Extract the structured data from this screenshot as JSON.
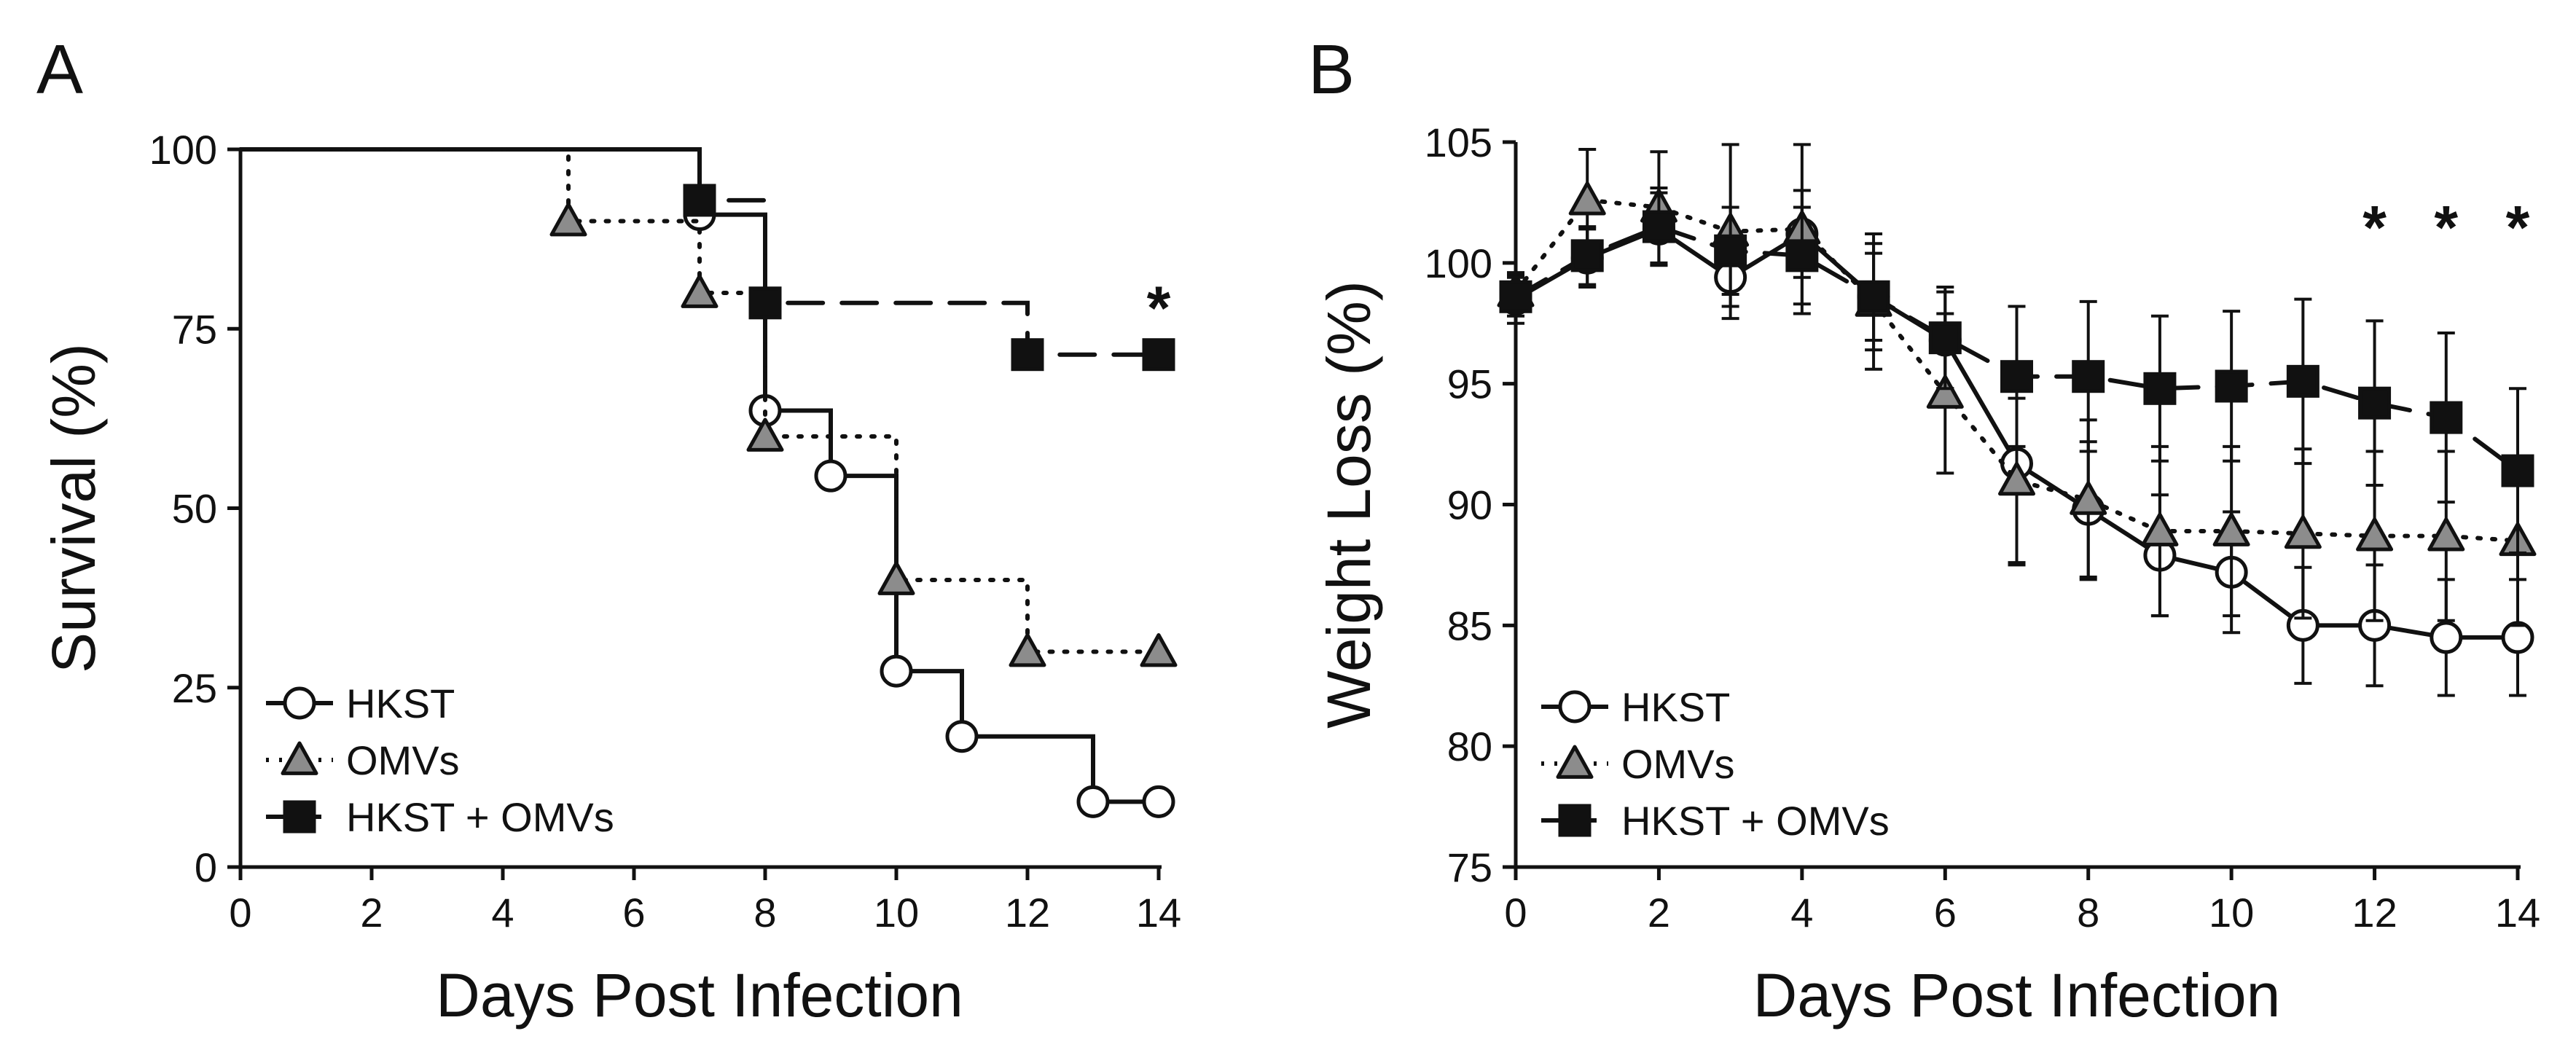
{
  "figure": {
    "labels": [
      "A",
      "B"
    ]
  },
  "styles": {
    "HKST": {
      "marker": "circle",
      "fill": "#ffffff",
      "dash": ""
    },
    "OMVs": {
      "marker": "triangle",
      "fill": "#8c8c8c",
      "dash": "4,16"
    },
    "HKST + OMVs": {
      "marker": "square",
      "fill": "#111111",
      "dash": "48,26"
    }
  },
  "chart_data": [
    {
      "panel": "A",
      "type": "line",
      "subtype": "kaplan-meier",
      "xlabel": "Days Post Infection",
      "ylabel": "Survival (%)",
      "xlim": [
        0,
        14
      ],
      "ylim": [
        0,
        100
      ],
      "xticks": [
        0,
        2,
        4,
        6,
        8,
        10,
        12,
        14
      ],
      "yticks": [
        0,
        25,
        50,
        75,
        100
      ],
      "legend_position": "bottom-left",
      "series": [
        {
          "name": "HKST",
          "steps": [
            [
              0,
              100
            ],
            [
              7,
              90.9
            ],
            [
              8,
              63.6
            ],
            [
              9,
              54.5
            ],
            [
              10,
              27.3
            ],
            [
              11,
              18.2
            ],
            [
              13,
              9.1
            ],
            [
              14,
              9.1
            ]
          ],
          "markers": [
            [
              7,
              90.9
            ],
            [
              8,
              63.6
            ],
            [
              9,
              54.5
            ],
            [
              10,
              27.3
            ],
            [
              11,
              18.2
            ],
            [
              13,
              9.1
            ],
            [
              14,
              9.1
            ]
          ]
        },
        {
          "name": "OMVs",
          "steps": [
            [
              0,
              100
            ],
            [
              5,
              90
            ],
            [
              7,
              80
            ],
            [
              8,
              60
            ],
            [
              10,
              40
            ],
            [
              12,
              30
            ],
            [
              14,
              30
            ]
          ],
          "markers": [
            [
              5,
              90
            ],
            [
              7,
              80
            ],
            [
              8,
              60
            ],
            [
              10,
              40
            ],
            [
              12,
              30
            ],
            [
              14,
              30
            ]
          ]
        },
        {
          "name": "HKST + OMVs",
          "steps": [
            [
              0,
              100
            ],
            [
              7,
              92.9
            ],
            [
              8,
              78.6
            ],
            [
              12,
              71.4
            ],
            [
              14,
              71.4
            ]
          ],
          "markers": [
            [
              7,
              92.9
            ],
            [
              8,
              78.6
            ],
            [
              12,
              71.4
            ],
            [
              14,
              71.4
            ]
          ]
        }
      ],
      "annotations": [
        {
          "text": "*",
          "x": 14,
          "y": 78
        }
      ]
    },
    {
      "panel": "B",
      "type": "line",
      "xlabel": "Days Post Infection",
      "ylabel": "Weight Loss (%)",
      "xlim": [
        0,
        14
      ],
      "ylim": [
        75,
        105
      ],
      "xticks": [
        0,
        2,
        4,
        6,
        8,
        10,
        12,
        14
      ],
      "yticks": [
        75,
        80,
        85,
        90,
        95,
        100,
        105
      ],
      "legend_position": "bottom-left",
      "series": [
        {
          "name": "HKST",
          "x": [
            0,
            1,
            2,
            3,
            4,
            5,
            6,
            7,
            8,
            9,
            10,
            11,
            12,
            13,
            14
          ],
          "y": [
            98.5,
            100.2,
            101.4,
            99.4,
            101.2,
            98.6,
            96.8,
            91.7,
            89.8,
            87.9,
            87.2,
            85.0,
            85.0,
            84.5,
            84.5
          ],
          "err": [
            1.0,
            1.2,
            1.5,
            1.2,
            1.8,
            2.2,
            2.0,
            4.2,
            2.8,
            2.5,
            2.5,
            2.4,
            2.5,
            2.4,
            2.4
          ]
        },
        {
          "name": "OMVs",
          "x": [
            0,
            1,
            2,
            3,
            4,
            5,
            6,
            7,
            8,
            9,
            10,
            11,
            12,
            13,
            14
          ],
          "y": [
            98.8,
            102.6,
            102.3,
            101.3,
            101.4,
            98.4,
            94.6,
            91.0,
            90.2,
            88.9,
            88.9,
            88.8,
            88.7,
            88.7,
            88.5
          ],
          "err": [
            0.8,
            2.1,
            2.3,
            3.6,
            3.5,
            2.8,
            3.3,
            3.4,
            3.3,
            3.5,
            3.5,
            3.5,
            3.5,
            3.5,
            3.5
          ]
        },
        {
          "name": "HKST + OMVs",
          "x": [
            0,
            1,
            2,
            3,
            4,
            5,
            6,
            7,
            8,
            9,
            10,
            11,
            12,
            13,
            14
          ],
          "y": [
            98.6,
            100.3,
            101.5,
            100.5,
            100.3,
            98.6,
            96.9,
            95.3,
            95.3,
            94.8,
            94.9,
            95.1,
            94.2,
            93.6,
            91.4
          ],
          "err": [
            0.8,
            1.2,
            1.6,
            1.8,
            2.0,
            1.8,
            2.1,
            2.9,
            3.1,
            3.0,
            3.1,
            3.4,
            3.4,
            3.5,
            3.4
          ]
        }
      ],
      "annotations": [
        {
          "text": "*",
          "x": 12,
          "y": 101.5
        },
        {
          "text": "*",
          "x": 13,
          "y": 101.5
        },
        {
          "text": "*",
          "x": 14,
          "y": 101.5
        }
      ]
    }
  ]
}
